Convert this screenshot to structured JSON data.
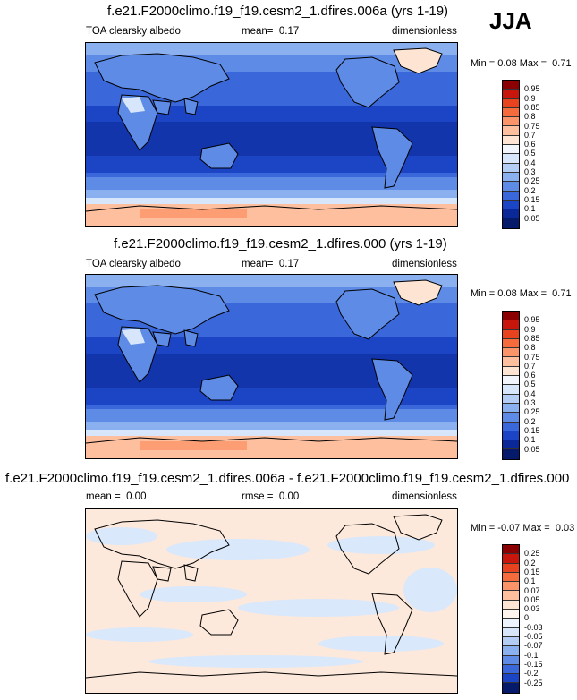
{
  "season": "JJA",
  "panels": [
    {
      "title": "f.e21.F2000climo.f19_f19.cesm2_1.dfires.006a (yrs 1-19)",
      "variable": "TOA clearsky albedo",
      "stat_label": "mean=",
      "stat_value": "0.17",
      "units": "dimensionless",
      "min_label": "Min =",
      "min_value": "0.08",
      "max_label": "Max =",
      "max_value": "0.71",
      "colorbar_labels": [
        "0.95",
        "0.9",
        "0.85",
        "0.8",
        "0.75",
        "0.7",
        "0.6",
        "0.5",
        "0.4",
        "0.3",
        "0.25",
        "0.2",
        "0.15",
        "0.1",
        "0.05"
      ],
      "colorbar_colors": [
        "#8b0000",
        "#c8160c",
        "#e8421e",
        "#f56b3b",
        "#fb9569",
        "#fdbf9e",
        "#fde4d3",
        "#f2f5fb",
        "#d7e6fb",
        "#b3cdf5",
        "#8bb0ef",
        "#5d8be6",
        "#3a68db",
        "#1c45c6",
        "#0b2898",
        "#061a6b"
      ]
    },
    {
      "title": "f.e21.F2000climo.f19_f19.cesm2_1.dfires.000 (yrs 1-19)",
      "variable": "TOA clearsky albedo",
      "stat_label": "mean=",
      "stat_value": "0.17",
      "units": "dimensionless",
      "min_label": "Min =",
      "min_value": "0.08",
      "max_label": "Max =",
      "max_value": "0.71",
      "colorbar_labels": [
        "0.95",
        "0.9",
        "0.85",
        "0.8",
        "0.75",
        "0.7",
        "0.6",
        "0.5",
        "0.4",
        "0.3",
        "0.25",
        "0.2",
        "0.15",
        "0.1",
        "0.05"
      ],
      "colorbar_colors": [
        "#8b0000",
        "#c8160c",
        "#e8421e",
        "#f56b3b",
        "#fb9569",
        "#fdbf9e",
        "#fde4d3",
        "#f2f5fb",
        "#d7e6fb",
        "#b3cdf5",
        "#8bb0ef",
        "#5d8be6",
        "#3a68db",
        "#1c45c6",
        "#0b2898",
        "#061a6b"
      ]
    },
    {
      "title": "f.e21.F2000climo.f19_f19.cesm2_1.dfires.006a - f.e21.F2000climo.f19_f19.cesm2_1.dfires.000",
      "variable": "",
      "mean_label": "mean =",
      "mean_value": "0.00",
      "stat_label": "rmse =",
      "stat_value": "0.00",
      "units": "dimensionless",
      "min_label": "Min =",
      "min_value": "-0.07",
      "max_label": "Max =",
      "max_value": "0.03",
      "colorbar_labels": [
        "0.25",
        "0.2",
        "0.15",
        "0.1",
        "0.07",
        "0.05",
        "0.03",
        "0",
        "-0.03",
        "-0.05",
        "-0.07",
        "-0.1",
        "-0.15",
        "-0.2",
        "-0.25"
      ],
      "colorbar_colors": [
        "#8b0000",
        "#c8160c",
        "#e8421e",
        "#f56b3b",
        "#fb9569",
        "#fdbf9e",
        "#fde4d3",
        "#fff5ee",
        "#eef4fd",
        "#d7e6fb",
        "#b3cdf5",
        "#8bb0ef",
        "#5d8be6",
        "#3a68db",
        "#1c45c6",
        "#061a6b"
      ]
    }
  ]
}
